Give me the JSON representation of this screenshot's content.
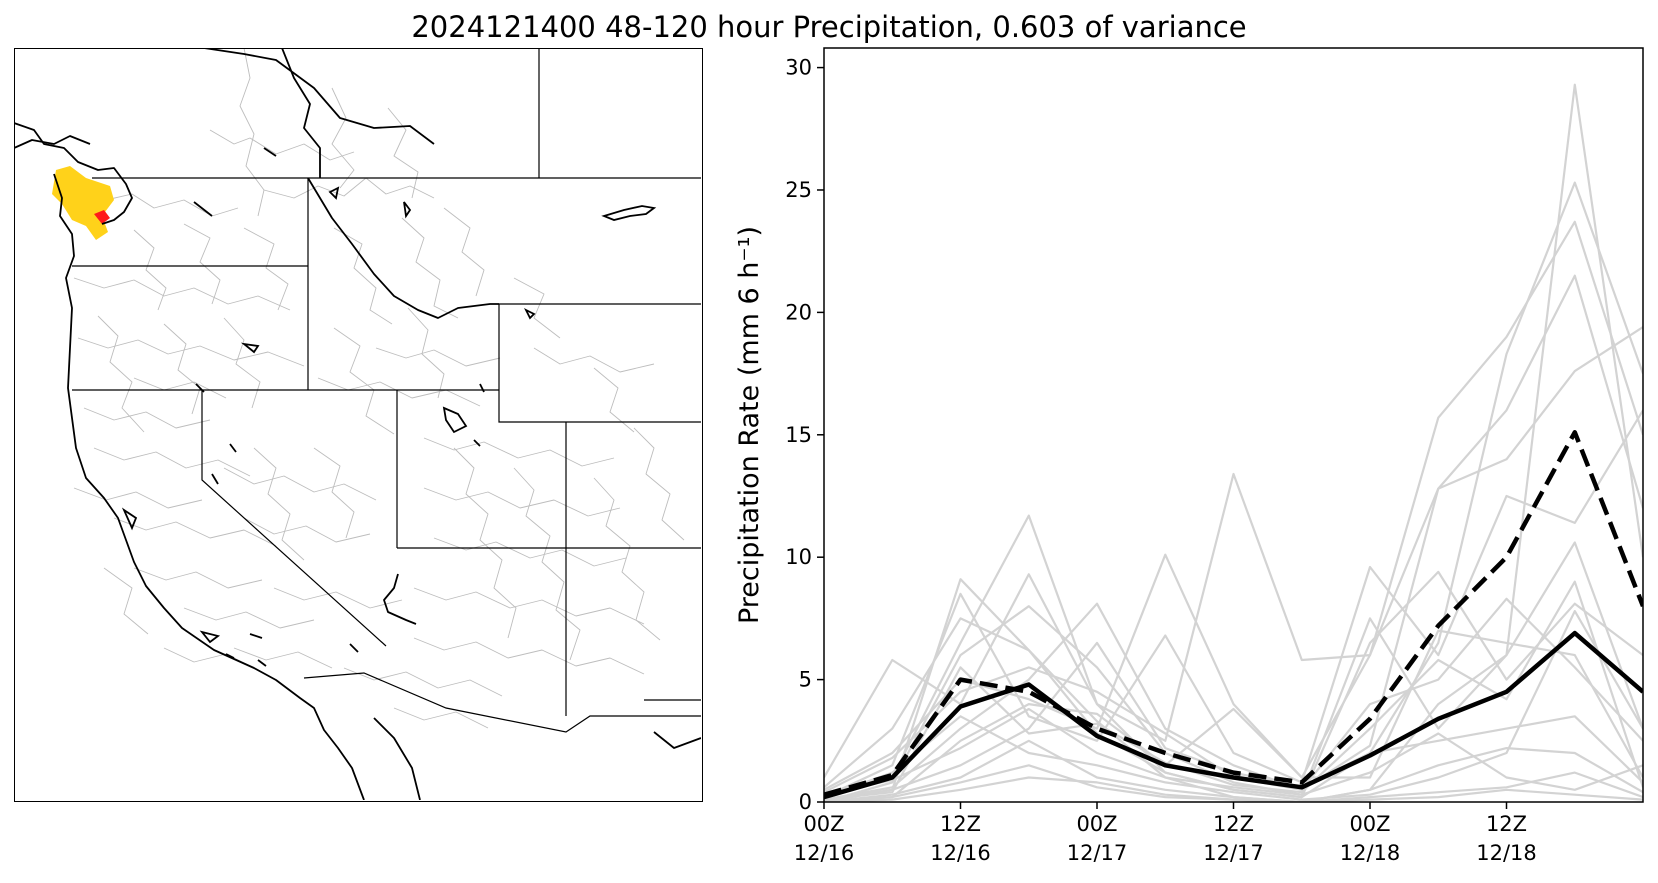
{
  "figure": {
    "title": "2024121400 48-120 hour Precipitation, 0.603 of variance"
  },
  "map": {
    "highlight_colors": {
      "basin_primary": "#FFD21A",
      "basin_secondary": "#FF1A1A"
    },
    "line_colors": {
      "coast_and_states": "#000000",
      "watersheds": "#BDBDBD"
    }
  },
  "chart_data": {
    "type": "line",
    "title": "",
    "xlabel": "",
    "ylabel": "Precipitation Rate (mm 6 h⁻¹)",
    "x": [
      "12/16 00Z",
      "12/16 06Z",
      "12/16 12Z",
      "12/16 18Z",
      "12/17 00Z",
      "12/17 06Z",
      "12/17 12Z",
      "12/17 18Z",
      "12/18 00Z",
      "12/18 06Z",
      "12/18 12Z",
      "12/18 18Z",
      "12/19 00Z"
    ],
    "xticks": [
      {
        "line1": "00Z",
        "line2": "12/16"
      },
      {
        "line1": "12Z",
        "line2": "12/16"
      },
      {
        "line1": "00Z",
        "line2": "12/17"
      },
      {
        "line1": "12Z",
        "line2": "12/17"
      },
      {
        "line1": "00Z",
        "line2": "12/18"
      },
      {
        "line1": "12Z",
        "line2": "12/18"
      }
    ],
    "xtick_positions": [
      0,
      2,
      4,
      6,
      8,
      10
    ],
    "xlim": [
      0,
      12
    ],
    "ylim": [
      0,
      30.8
    ],
    "yticks": [
      0,
      5,
      10,
      15,
      20,
      25,
      30
    ],
    "grid": false,
    "highlight_series": [
      {
        "style": "solid",
        "color": "#000000",
        "values": [
          0.2,
          1.0,
          3.9,
          4.8,
          2.7,
          1.5,
          1.0,
          0.6,
          1.9,
          3.4,
          4.5,
          6.9,
          4.5
        ]
      },
      {
        "style": "dashed",
        "color": "#000000",
        "values": [
          0.3,
          1.1,
          5.0,
          4.5,
          3.0,
          2.0,
          1.2,
          0.8,
          3.4,
          7.2,
          10.0,
          15.1,
          8.0
        ]
      }
    ],
    "ensemble_color": "#D3D3D3",
    "ensemble_members": [
      [
        0.0,
        0.5,
        9.1,
        6.2,
        3.3,
        1.0,
        0.2,
        0.0,
        0.5,
        4.0,
        6.0,
        29.3,
        10.0
      ],
      [
        0.3,
        1.0,
        6.5,
        11.7,
        4.0,
        1.2,
        0.5,
        0.2,
        2.0,
        6.5,
        18.3,
        25.3,
        17.5
      ],
      [
        0.5,
        2.0,
        5.0,
        4.2,
        3.0,
        10.1,
        4.0,
        1.0,
        6.0,
        15.7,
        19.0,
        23.7,
        15.0
      ],
      [
        0.1,
        0.6,
        3.0,
        5.0,
        8.1,
        3.0,
        1.5,
        0.5,
        2.3,
        12.8,
        16.0,
        21.5,
        12.0
      ],
      [
        1.0,
        5.8,
        4.0,
        9.3,
        4.0,
        2.5,
        13.4,
        5.8,
        6.0,
        12.8,
        14.0,
        17.6,
        19.4
      ],
      [
        0.2,
        1.5,
        8.5,
        3.5,
        2.5,
        6.8,
        2.0,
        0.8,
        9.6,
        6.0,
        12.5,
        11.4,
        16.0
      ],
      [
        0.0,
        0.8,
        6.0,
        8.0,
        5.5,
        2.0,
        0.8,
        0.3,
        7.5,
        3.0,
        6.0,
        10.6,
        3.0
      ],
      [
        0.6,
        3.0,
        7.5,
        6.2,
        2.8,
        1.2,
        0.5,
        0.2,
        6.5,
        9.4,
        5.0,
        8.1,
        6.0
      ],
      [
        0.0,
        0.2,
        2.5,
        4.0,
        3.6,
        1.5,
        3.8,
        1.0,
        1.0,
        7.0,
        6.5,
        6.0,
        1.0
      ],
      [
        0.4,
        1.8,
        4.5,
        5.5,
        4.5,
        2.8,
        1.0,
        0.5,
        4.0,
        5.0,
        8.3,
        5.5,
        2.5
      ],
      [
        0.1,
        0.5,
        1.5,
        3.0,
        6.5,
        2.2,
        1.2,
        0.6,
        2.0,
        2.5,
        3.0,
        3.5,
        0.8
      ],
      [
        0.2,
        1.2,
        3.5,
        2.0,
        1.5,
        0.8,
        0.4,
        0.1,
        0.3,
        1.0,
        2.0,
        7.8,
        3.0
      ],
      [
        0.0,
        0.3,
        1.0,
        2.5,
        1.0,
        0.5,
        0.2,
        0.0,
        0.5,
        1.5,
        2.2,
        2.0,
        0.4
      ],
      [
        0.3,
        0.9,
        2.2,
        3.8,
        2.0,
        1.0,
        0.6,
        0.3,
        1.2,
        2.8,
        1.0,
        0.5,
        1.5
      ],
      [
        0.0,
        0.1,
        0.5,
        1.0,
        0.8,
        0.3,
        0.1,
        0.0,
        0.2,
        0.4,
        0.6,
        1.2,
        0.2
      ],
      [
        0.1,
        0.4,
        5.5,
        2.8,
        3.2,
        1.6,
        0.7,
        0.4,
        3.0,
        5.8,
        4.2,
        9.0,
        0.6
      ],
      [
        0.0,
        0.2,
        0.8,
        1.5,
        0.6,
        0.2,
        0.1,
        0.0,
        0.1,
        0.2,
        0.5,
        0.3,
        0.1
      ]
    ]
  }
}
